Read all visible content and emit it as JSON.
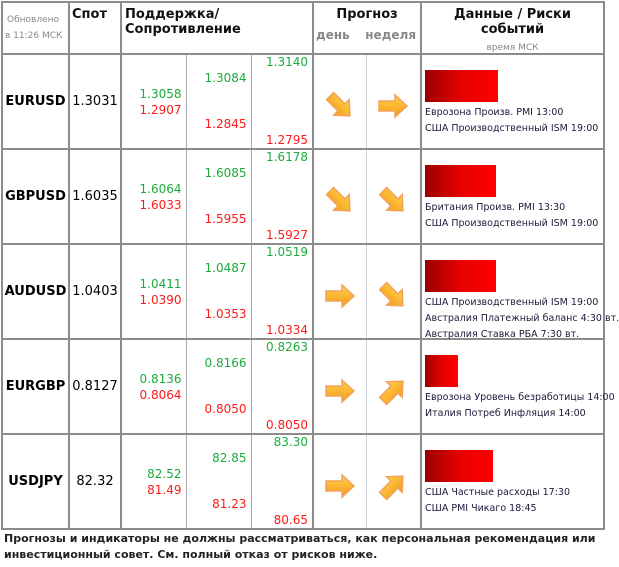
{
  "header": {
    "updated_line1": "Обновлено",
    "updated_line2": "в 11:26 МСК",
    "spot": "Спот",
    "sr": "Поддержка/Сопротивление",
    "forecast": "Прогноз",
    "day": "день",
    "week": "неделя",
    "data_risks": "Данные / Риски событий",
    "time_note": "время МСК"
  },
  "colors": {
    "green": "#1cab3c",
    "red": "#ff1a1a",
    "arrow": "#ffa500"
  },
  "rows": [
    {
      "pair": "EURUSD",
      "spot": "1.3031",
      "s1_hi": "1.3058",
      "s1_lo": "1.2907",
      "s2_hi": "1.3084",
      "s2_lo": "1.2845",
      "s3_hi": "1.3140",
      "s3_lo": "1.2795",
      "day": "down-right",
      "week": "right",
      "risk": 1.0,
      "events": [
        "Еврозона Произв. PMI 13:00",
        "США Производственный ISM 19:00"
      ]
    },
    {
      "pair": "GBPUSD",
      "spot": "1.6035",
      "s1_hi": "1.6064",
      "s1_lo": "1.6033",
      "s2_hi": "1.6085",
      "s2_lo": "1.5955",
      "s3_hi": "1.6178",
      "s3_lo": "1.5927",
      "day": "down-right",
      "week": "down-right",
      "risk": 0.97,
      "events": [
        "Британия Произв. PMI 13:30",
        "США Производственный ISM 19:00"
      ]
    },
    {
      "pair": "AUDUSD",
      "spot": "1.0403",
      "s1_hi": "1.0411",
      "s1_lo": "1.0390",
      "s2_hi": "1.0487",
      "s2_lo": "1.0353",
      "s3_hi": "1.0519",
      "s3_lo": "1.0334",
      "day": "right",
      "week": "down-right",
      "risk": 0.97,
      "events": [
        "США Производственный ISM 19:00",
        "Австралия Платежный баланс 4:30 вт.",
        "Австралия Ставка РБА 7:30 вт."
      ]
    },
    {
      "pair": "EURGBP",
      "spot": "0.8127",
      "s1_hi": "0.8136",
      "s1_lo": "0.8064",
      "s2_hi": "0.8166",
      "s2_lo": "0.8050",
      "s3_hi": "0.8263",
      "s3_lo": "0.8050",
      "day": "right",
      "week": "up-right",
      "risk": 0.45,
      "events": [
        "Еврозона Уровень безработицы 14:00",
        "Италия Потреб Инфляция 14:00"
      ]
    },
    {
      "pair": "USDJPY",
      "spot": "82.32",
      "s1_hi": "82.52",
      "s1_lo": "81.49",
      "s2_hi": "82.85",
      "s2_lo": "81.23",
      "s3_hi": "83.30",
      "s3_lo": "80.65",
      "day": "right",
      "week": "up-right",
      "risk": 0.93,
      "events": [
        "США Частные расходы 17:30",
        "США PMI Чикаго 18:45"
      ]
    }
  ],
  "footer": "Прогнозы и индикаторы не должны рассматриваться, как персональная рекомендация или инвестиционный совет. См. полный отказ от рисков ниже."
}
